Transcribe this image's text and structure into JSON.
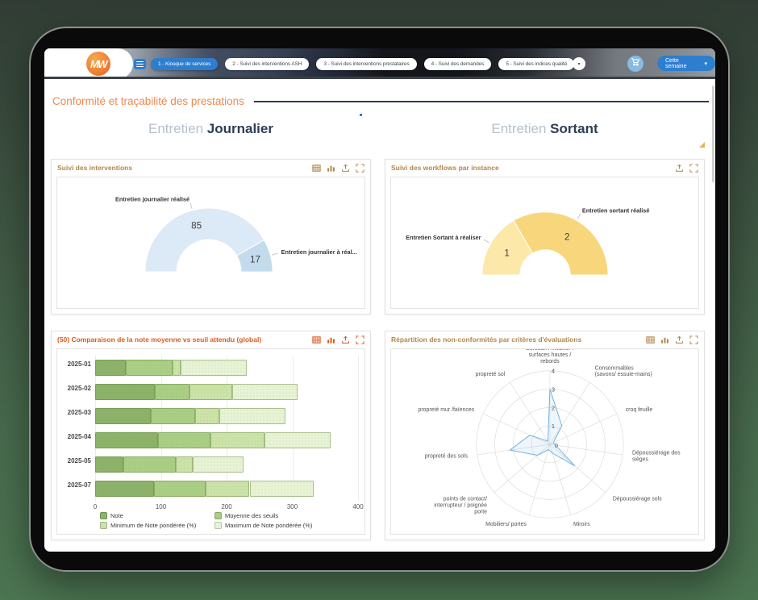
{
  "nav": {
    "logo": "MW",
    "tabs": [
      {
        "label": "1 - Kiosque de services",
        "active": true
      },
      {
        "label": "2 - Suivi des interventions ASH",
        "active": false
      },
      {
        "label": "3 - Suivi des interventions prestataires",
        "active": false
      },
      {
        "label": "4 - Suivi des demandes",
        "active": false
      },
      {
        "label": "5 - Suivi des indices qualité",
        "active": false
      }
    ],
    "more_button": "▾",
    "period_button": {
      "label": "Cette semaine",
      "caret": "▾"
    },
    "accent_blue": "#2e7ed0",
    "cart_circle_color": "#86bbe6"
  },
  "page": {
    "title": "Conformité et traçabilité des prestations",
    "title_color": "#ee8a50",
    "columns": [
      {
        "light": "Entretien",
        "bold": "Journalier"
      },
      {
        "light": "Entretien",
        "bold": "Sortant"
      }
    ]
  },
  "panels": [
    {
      "title": "Suivi des interventions",
      "title_color": "#b3874a",
      "icons": [
        "table",
        "bar-chart",
        "export",
        "expand"
      ]
    },
    {
      "title": "Suivi des workflows par instance",
      "title_color": "#b3874a",
      "icons": [
        "export",
        "expand"
      ]
    },
    {
      "title": "(50) Comparaison de la note moyenne vs seuil attendu (global)",
      "title_color": "#de5a1e",
      "icons": [
        "table",
        "bar-chart",
        "export",
        "expand"
      ]
    },
    {
      "title": "Répartition des non-conformités par critères d'évaluations",
      "title_color": "#b3874a",
      "icons": [
        "table",
        "bar-chart",
        "export",
        "expand"
      ]
    }
  ],
  "chart_data": [
    {
      "type": "pie",
      "variant": "semi-donut",
      "title": "Suivi des interventions",
      "slices": [
        {
          "label": "Entretien journalier réalisé",
          "value": 85,
          "color": "#dce9f6"
        },
        {
          "label": "Entretien journalier à réal...",
          "value": 17,
          "color": "#c3dbed"
        }
      ]
    },
    {
      "type": "pie",
      "variant": "semi-donut",
      "title": "Suivi des workflows par instance",
      "slices": [
        {
          "label": "Entretien Sortant à réaliser",
          "value": 1,
          "color": "#fce9a9"
        },
        {
          "label": "Entretien sortant réalisé",
          "value": 2,
          "color": "#f8d77c"
        }
      ]
    },
    {
      "type": "bar",
      "variant": "horizontal-stacked",
      "title": "(50) Comparaison de la note moyenne vs seuil attendu (global)",
      "categories": [
        "2025-01",
        "2025-02",
        "2025-03",
        "2025-04",
        "2025-05",
        "2025-07"
      ],
      "series": [
        {
          "name": "Note",
          "color": "#8cb369",
          "values": [
            47,
            91,
            84,
            96,
            43,
            89
          ]
        },
        {
          "name": "Moyenne des seuils",
          "color": "#abce85",
          "values": [
            71,
            52,
            68,
            80,
            80,
            79
          ]
        },
        {
          "name": "Minimum de Note pondérée (%)",
          "color": "#cbe3a8",
          "values": [
            12,
            65,
            37,
            82,
            25,
            67
          ]
        },
        {
          "name": "Maximum de Note pondérée (%)",
          "color": "#e7f3d4",
          "values": [
            100,
            100,
            100,
            100,
            78,
            97
          ]
        }
      ],
      "xlim": [
        0,
        400
      ],
      "xticks": [
        0,
        100,
        200,
        300,
        400
      ]
    },
    {
      "type": "radar",
      "title": "Répartition des non-conformités par critères d'évaluations",
      "categories": [
        [
          "Bureaux / mobilier /",
          "surfaces hautes /",
          "rebords"
        ],
        [
          "Consommables",
          "(savons/ essuie-mains)"
        ],
        [
          "croq feuille"
        ],
        [
          "Dépoussiérage des",
          "sièges"
        ],
        [
          "Dépoussiérage sols"
        ],
        [
          "Miroirs"
        ],
        [
          "Mobiliers/ portes"
        ],
        [
          "points de contact/",
          "interrupteur / poignée",
          "porte"
        ],
        [
          "propreté des sols"
        ],
        [
          "propreté mur /faïences"
        ],
        [
          "propreté sol"
        ]
      ],
      "values": [
        3,
        1.2,
        0.2,
        0.3,
        1.8,
        0.5,
        0.3,
        0.9,
        2.2,
        1.2,
        0.2
      ],
      "rmax": 4,
      "ticks": [
        0,
        1,
        2,
        3,
        4
      ],
      "line_color": "#74b1de"
    }
  ]
}
